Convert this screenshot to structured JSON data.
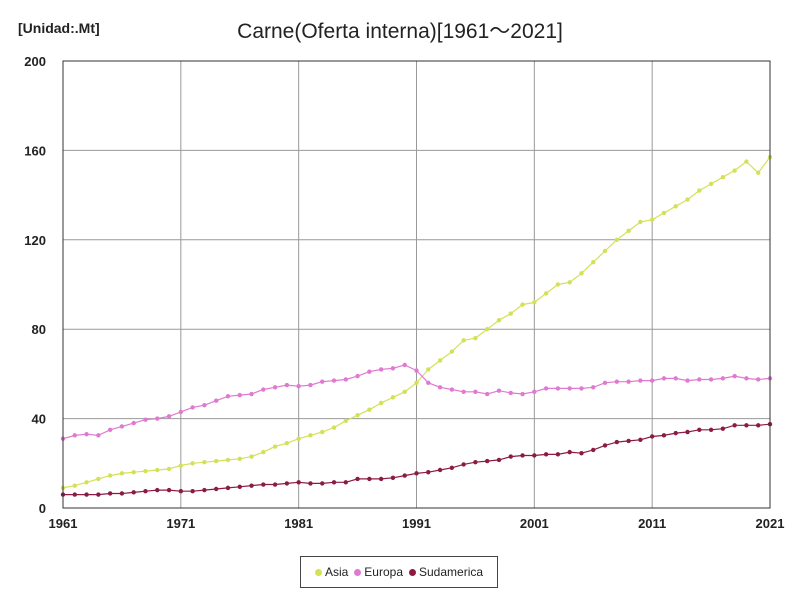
{
  "chart_data": {
    "type": "line",
    "title": "Carne(Oferta interna)[1961～2021]",
    "unit_label": "[Unidad:.Mt]",
    "xlim": [
      1961,
      2021
    ],
    "ylim": [
      0,
      200
    ],
    "x_ticks": [
      "1961",
      "1971",
      "1981",
      "1991",
      "2001",
      "2011",
      "2021"
    ],
    "y_ticks": [
      "0",
      "40",
      "80",
      "120",
      "160",
      "200"
    ],
    "grid": true,
    "legend_position": "bottom",
    "x": [
      1961,
      1962,
      1963,
      1964,
      1965,
      1966,
      1967,
      1968,
      1969,
      1970,
      1971,
      1972,
      1973,
      1974,
      1975,
      1976,
      1977,
      1978,
      1979,
      1980,
      1981,
      1982,
      1983,
      1984,
      1985,
      1986,
      1987,
      1988,
      1989,
      1990,
      1991,
      1992,
      1993,
      1994,
      1995,
      1996,
      1997,
      1998,
      1999,
      2000,
      2001,
      2002,
      2003,
      2004,
      2005,
      2006,
      2007,
      2008,
      2009,
      2010,
      2011,
      2012,
      2013,
      2014,
      2015,
      2016,
      2017,
      2018,
      2019,
      2020,
      2021
    ],
    "series": [
      {
        "name": "Asia",
        "color": "#d4e157",
        "values": [
          9,
          10,
          11.5,
          13,
          14.5,
          15.5,
          16,
          16.5,
          17,
          17.5,
          19,
          20,
          20.5,
          21,
          21.5,
          22,
          23,
          25,
          27.5,
          29,
          31,
          32.5,
          34,
          36,
          39,
          41.5,
          44,
          47,
          49.5,
          52,
          56,
          62,
          66,
          70,
          75,
          76,
          80,
          84,
          87,
          91,
          92,
          96,
          100,
          101,
          105,
          110,
          115,
          120,
          124,
          128,
          129,
          132,
          135,
          138,
          142,
          145,
          148,
          151,
          155,
          150,
          157
        ]
      },
      {
        "name": "Europa",
        "color": "#e07ad0",
        "values": [
          31,
          32.5,
          33,
          32.5,
          35,
          36.5,
          38,
          39.5,
          40,
          41,
          43,
          45,
          46,
          48,
          50,
          50.5,
          51,
          53,
          54,
          55,
          54.5,
          55,
          56.5,
          57,
          57.5,
          59,
          61,
          62,
          62.5,
          64,
          61.5,
          56,
          54,
          53,
          52,
          52,
          51,
          52.5,
          51.5,
          51,
          52,
          53.5,
          53.5,
          53.5,
          53.5,
          54,
          56,
          56.5,
          56.5,
          57,
          57,
          58,
          58,
          57,
          57.5,
          57.5,
          58,
          59,
          58,
          57.5,
          58
        ]
      },
      {
        "name": "Sudamerica",
        "color": "#8b1a45",
        "values": [
          6,
          6,
          6,
          6,
          6.5,
          6.5,
          7,
          7.5,
          8,
          8,
          7.5,
          7.5,
          8,
          8.5,
          9,
          9.5,
          10,
          10.5,
          10.5,
          11,
          11.5,
          11,
          11,
          11.5,
          11.5,
          13,
          13,
          13,
          13.5,
          14.5,
          15.5,
          16,
          17,
          18,
          19.5,
          20.5,
          21,
          21.5,
          23,
          23.5,
          23.5,
          24,
          24,
          25,
          24.5,
          26,
          28,
          29.5,
          30,
          30.5,
          32,
          32.5,
          33.5,
          34,
          35,
          35,
          35.5,
          37,
          37,
          37,
          37.5
        ]
      }
    ]
  }
}
